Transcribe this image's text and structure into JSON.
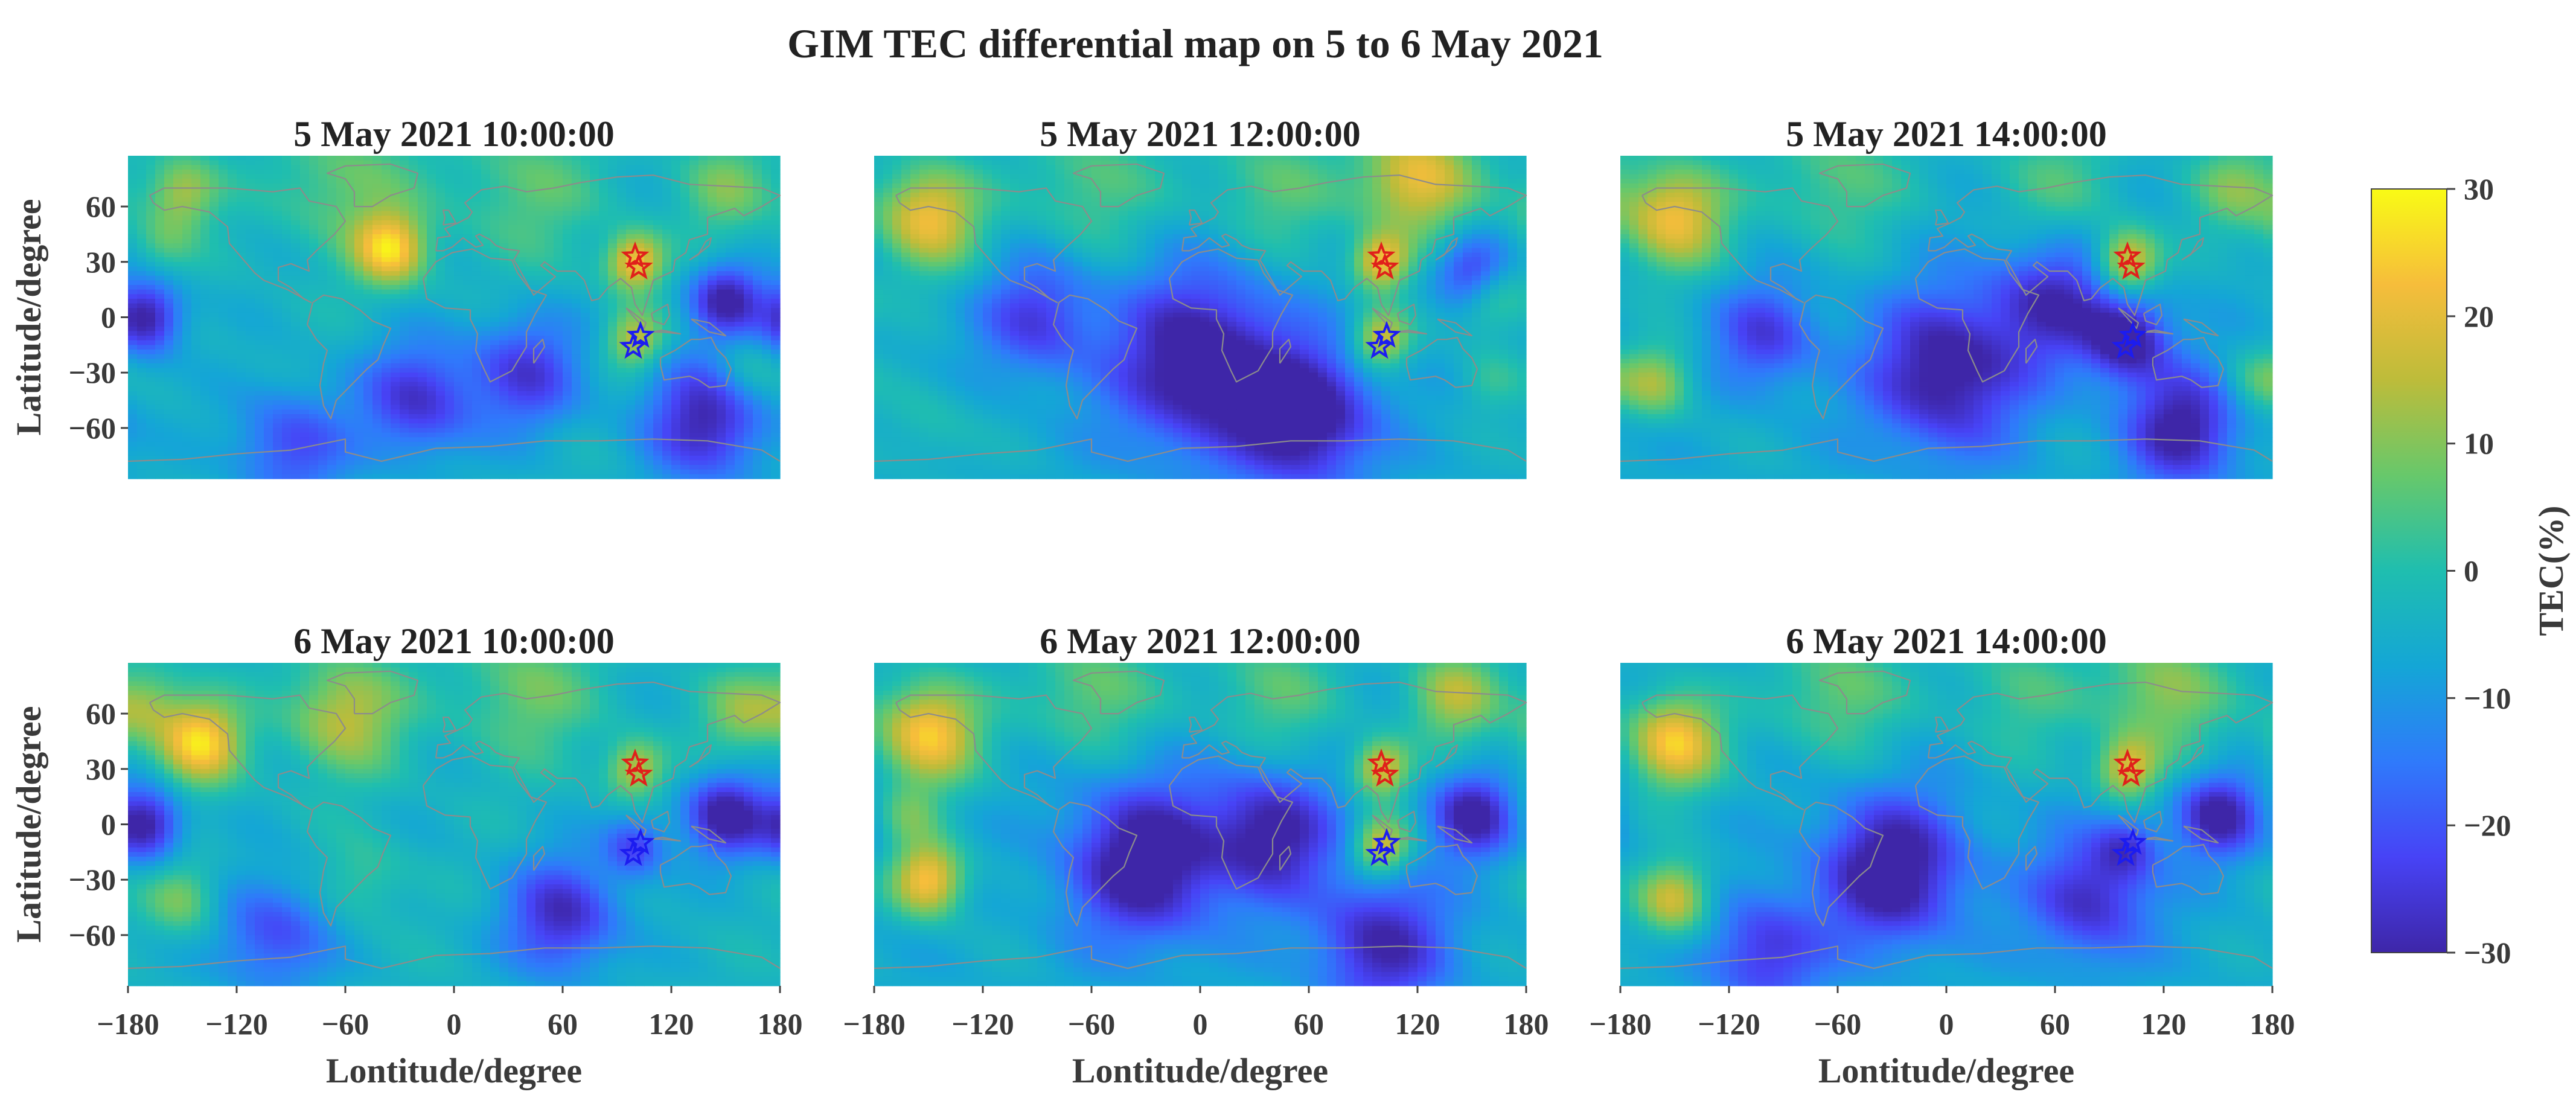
{
  "figure_title": "GIM TEC differential map on 5 to 6 May 2021",
  "chart_data": {
    "type": "heatmap",
    "title": "GIM TEC differential map on 5 to 6 May 2021",
    "xlabel": "Lontitude/degree",
    "ylabel": "Latitude/degree",
    "xlim": [
      -180,
      180
    ],
    "ylim": [
      -87.5,
      87.5
    ],
    "xticks": [
      -180,
      -120,
      -60,
      0,
      60,
      120,
      180
    ],
    "yticks": [
      60,
      30,
      0,
      -30,
      -60
    ],
    "xtick_labels": [
      "−180",
      "−120",
      "−60",
      "0",
      "60",
      "120",
      "180"
    ],
    "ytick_labels": [
      "60",
      "30",
      "0",
      "−30",
      "−60"
    ],
    "colorbar": {
      "label": "TEC(%)",
      "range": [
        -30,
        30
      ],
      "ticks": [
        30,
        20,
        10,
        0,
        -10,
        -20,
        -30
      ],
      "tick_labels": [
        "30",
        "20",
        "10",
        "0",
        "−10",
        "−20",
        "−30"
      ],
      "colormap": [
        "#3e26a8",
        "#4743f6",
        "#2f7afb",
        "#14a6d6",
        "#1fbeaf",
        "#67c86b",
        "#bdbc3a",
        "#f6bd3b",
        "#f9fb15"
      ]
    },
    "markers": [
      {
        "name": "red-star-north",
        "lon": 100,
        "lat": 33,
        "color": "#e0201b"
      },
      {
        "name": "red-star-south",
        "lon": 102,
        "lat": 27,
        "color": "#e0201b"
      },
      {
        "name": "blue-star-north",
        "lon": 103,
        "lat": -10,
        "color": "#1c1cf0"
      },
      {
        "name": "blue-star-south",
        "lon": 99,
        "lat": -16,
        "color": "#1c1cf0"
      }
    ],
    "panels": [
      {
        "title": "5 May 2021 10:00:00",
        "bias": -4,
        "anomalies": [
          {
            "lon": -35,
            "lat": 37,
            "value": 28,
            "spread": 14
          },
          {
            "lon": 100,
            "lat": 30,
            "value": 28,
            "spread": 11
          },
          {
            "lon": 100,
            "lat": -12,
            "value": 20,
            "spread": 11
          },
          {
            "lon": -150,
            "lat": 68,
            "value": 18,
            "spread": 14
          },
          {
            "lon": -60,
            "lat": 72,
            "value": 12,
            "spread": 26
          },
          {
            "lon": 40,
            "lat": 70,
            "value": 10,
            "spread": 28
          },
          {
            "lon": 150,
            "lat": 70,
            "value": 12,
            "spread": 18
          },
          {
            "lon": -160,
            "lat": 40,
            "value": 8,
            "spread": 12
          },
          {
            "lon": 160,
            "lat": -30,
            "value": 10,
            "spread": 14
          },
          {
            "lon": -170,
            "lat": 0,
            "value": -28,
            "spread": 14
          },
          {
            "lon": -20,
            "lat": -45,
            "value": -22,
            "spread": 22
          },
          {
            "lon": 40,
            "lat": -30,
            "value": -20,
            "spread": 22
          },
          {
            "lon": 150,
            "lat": 10,
            "value": -26,
            "spread": 14
          },
          {
            "lon": 140,
            "lat": -55,
            "value": -26,
            "spread": 24
          },
          {
            "lon": -90,
            "lat": -70,
            "value": -18,
            "spread": 22
          }
        ]
      },
      {
        "title": "5 May 2021 12:00:00",
        "bias": -6,
        "anomalies": [
          {
            "lon": -150,
            "lat": 55,
            "value": 28,
            "spread": 20
          },
          {
            "lon": 120,
            "lat": 75,
            "value": 28,
            "spread": 22
          },
          {
            "lon": 100,
            "lat": 30,
            "value": 28,
            "spread": 11
          },
          {
            "lon": 100,
            "lat": -12,
            "value": 24,
            "spread": 11
          },
          {
            "lon": -60,
            "lat": 72,
            "value": 12,
            "spread": 26
          },
          {
            "lon": 40,
            "lat": 70,
            "value": 12,
            "spread": 26
          },
          {
            "lon": 160,
            "lat": 10,
            "value": 14,
            "spread": 14
          },
          {
            "lon": 160,
            "lat": -35,
            "value": 8,
            "spread": 12
          },
          {
            "lon": -150,
            "lat": -60,
            "value": 6,
            "spread": 18
          },
          {
            "lon": 0,
            "lat": -25,
            "value": -30,
            "spread": 34
          },
          {
            "lon": 60,
            "lat": -55,
            "value": -28,
            "spread": 26
          },
          {
            "lon": -90,
            "lat": 0,
            "value": -18,
            "spread": 22
          },
          {
            "lon": 150,
            "lat": 25,
            "value": -22,
            "spread": 14
          }
        ]
      },
      {
        "title": "5 May 2021 14:00:00",
        "bias": -6,
        "anomalies": [
          {
            "lon": -150,
            "lat": 55,
            "value": 28,
            "spread": 20
          },
          {
            "lon": 100,
            "lat": 30,
            "value": 28,
            "spread": 12
          },
          {
            "lon": -60,
            "lat": 75,
            "value": 12,
            "spread": 26
          },
          {
            "lon": 60,
            "lat": 72,
            "value": 10,
            "spread": 26
          },
          {
            "lon": 160,
            "lat": 70,
            "value": 14,
            "spread": 18
          },
          {
            "lon": -160,
            "lat": -35,
            "value": 18,
            "spread": 14
          },
          {
            "lon": 170,
            "lat": -35,
            "value": 10,
            "spread": 12
          },
          {
            "lon": 100,
            "lat": -12,
            "value": -26,
            "spread": 16
          },
          {
            "lon": 0,
            "lat": -30,
            "value": -28,
            "spread": 30
          },
          {
            "lon": 60,
            "lat": 10,
            "value": -22,
            "spread": 24
          },
          {
            "lon": 130,
            "lat": -60,
            "value": -26,
            "spread": 22
          },
          {
            "lon": -100,
            "lat": -10,
            "value": -18,
            "spread": 20
          }
        ]
      },
      {
        "title": "6 May 2021 10:00:00",
        "bias": -4,
        "anomalies": [
          {
            "lon": -140,
            "lat": 45,
            "value": 30,
            "spread": 16
          },
          {
            "lon": -60,
            "lat": 60,
            "value": 20,
            "spread": 22
          },
          {
            "lon": 100,
            "lat": 30,
            "value": 20,
            "spread": 11
          },
          {
            "lon": -170,
            "lat": 65,
            "value": 14,
            "spread": 14
          },
          {
            "lon": 40,
            "lat": 72,
            "value": 12,
            "spread": 26
          },
          {
            "lon": 160,
            "lat": 60,
            "value": 14,
            "spread": 16
          },
          {
            "lon": -150,
            "lat": -40,
            "value": 14,
            "spread": 14
          },
          {
            "lon": -50,
            "lat": -30,
            "value": 8,
            "spread": 16
          },
          {
            "lon": -170,
            "lat": 0,
            "value": -28,
            "spread": 14
          },
          {
            "lon": 150,
            "lat": 5,
            "value": -28,
            "spread": 16
          },
          {
            "lon": 60,
            "lat": -50,
            "value": -24,
            "spread": 22
          },
          {
            "lon": -100,
            "lat": -60,
            "value": -18,
            "spread": 22
          },
          {
            "lon": 100,
            "lat": -12,
            "value": -18,
            "spread": 12
          }
        ]
      },
      {
        "title": "6 May 2021 12:00:00",
        "bias": -6,
        "anomalies": [
          {
            "lon": -150,
            "lat": 50,
            "value": 30,
            "spread": 20
          },
          {
            "lon": -150,
            "lat": -30,
            "value": 30,
            "spread": 14
          },
          {
            "lon": 100,
            "lat": 30,
            "value": 26,
            "spread": 11
          },
          {
            "lon": 100,
            "lat": -12,
            "value": 26,
            "spread": 11
          },
          {
            "lon": 140,
            "lat": 70,
            "value": 20,
            "spread": 18
          },
          {
            "lon": -60,
            "lat": 72,
            "value": 14,
            "spread": 24
          },
          {
            "lon": 40,
            "lat": 72,
            "value": 12,
            "spread": 24
          },
          {
            "lon": -160,
            "lat": 5,
            "value": 10,
            "spread": 12
          },
          {
            "lon": -30,
            "lat": -20,
            "value": -30,
            "spread": 30
          },
          {
            "lon": 40,
            "lat": -5,
            "value": -26,
            "spread": 24
          },
          {
            "lon": 150,
            "lat": 5,
            "value": -26,
            "spread": 16
          },
          {
            "lon": 100,
            "lat": -65,
            "value": -24,
            "spread": 26
          }
        ]
      },
      {
        "title": "6 May 2021 14:00:00",
        "bias": -6,
        "anomalies": [
          {
            "lon": -150,
            "lat": 45,
            "value": 30,
            "spread": 18
          },
          {
            "lon": -150,
            "lat": -40,
            "value": 24,
            "spread": 14
          },
          {
            "lon": 100,
            "lat": 30,
            "value": 24,
            "spread": 12
          },
          {
            "lon": 120,
            "lat": 72,
            "value": 18,
            "spread": 24
          },
          {
            "lon": -60,
            "lat": 72,
            "value": 14,
            "spread": 24
          },
          {
            "lon": 40,
            "lat": 72,
            "value": 10,
            "spread": 24
          },
          {
            "lon": -30,
            "lat": -25,
            "value": -30,
            "spread": 28
          },
          {
            "lon": 150,
            "lat": 5,
            "value": -26,
            "spread": 16
          },
          {
            "lon": 80,
            "lat": -40,
            "value": -22,
            "spread": 24
          },
          {
            "lon": -100,
            "lat": -70,
            "value": -20,
            "spread": 22
          },
          {
            "lon": 100,
            "lat": -12,
            "value": -14,
            "spread": 12
          }
        ]
      }
    ]
  }
}
